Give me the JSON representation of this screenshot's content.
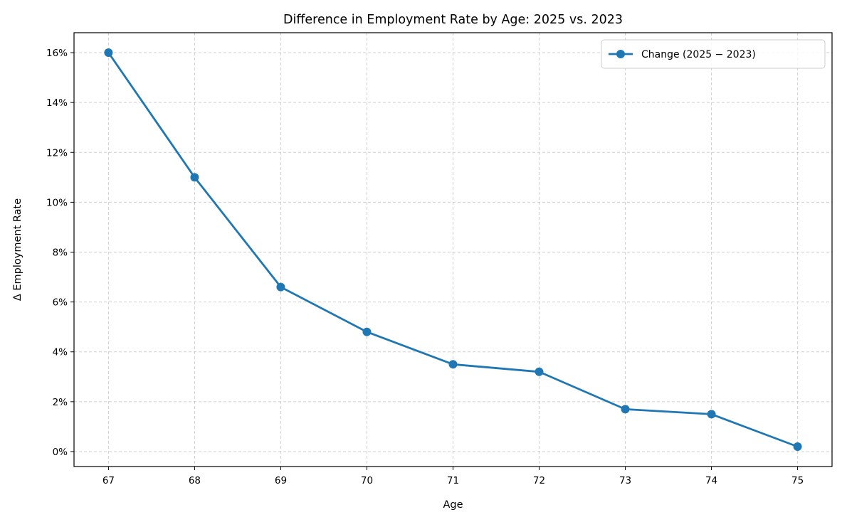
{
  "chart_data": {
    "type": "line",
    "title": "Difference in Employment Rate by Age: 2025 vs. 2023",
    "xlabel": "Age",
    "ylabel": "Δ Employment Rate",
    "x": [
      67,
      68,
      69,
      70,
      71,
      72,
      73,
      74,
      75
    ],
    "series": [
      {
        "name": "Change (2025 − 2023)",
        "values": [
          16.0,
          11.0,
          6.6,
          4.8,
          3.5,
          3.2,
          1.7,
          1.5,
          0.2
        ],
        "color": "#1f77b4"
      }
    ],
    "xticks": [
      "67",
      "68",
      "69",
      "70",
      "71",
      "72",
      "73",
      "74",
      "75"
    ],
    "yticks": [
      "0%",
      "2%",
      "4%",
      "6%",
      "8%",
      "10%",
      "12%",
      "14%",
      "16%"
    ],
    "xlim": [
      66.6,
      75.4
    ],
    "ylim": [
      -0.6,
      16.8
    ],
    "grid": true,
    "legend_position": "upper right"
  }
}
